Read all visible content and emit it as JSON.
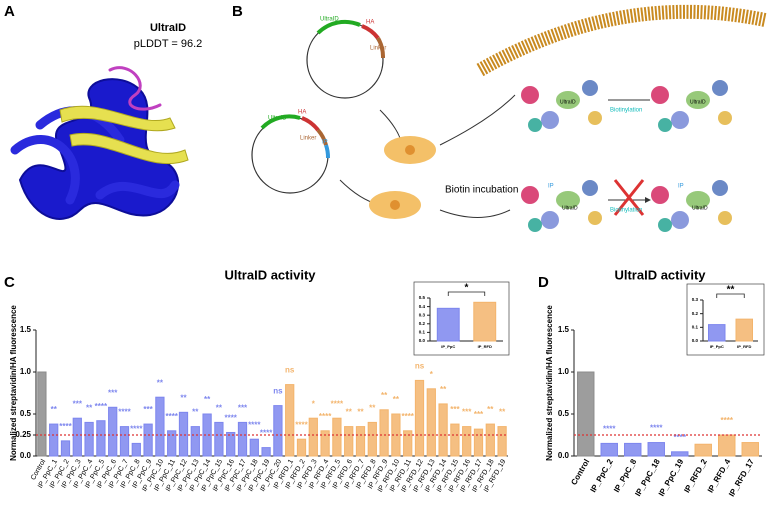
{
  "panel_labels": [
    "A",
    "B",
    "C",
    "D"
  ],
  "structure": {
    "name": "UltraID",
    "score": "pLDDT = 96.2"
  },
  "schematic": {
    "plasmid1": [
      "UltraID",
      "HA",
      "Linker"
    ],
    "plasmid2": [
      "UltraID",
      "HA",
      "IP",
      "Linker"
    ],
    "step": "Biotin incubation",
    "reaction": "Biotinylation",
    "protein": "UltraID",
    "binder": "IP"
  },
  "chart_data": [
    {
      "type": "bar",
      "title": "UltraID activity",
      "y_label": "Normalized streptavidin/HA fluorescence",
      "categories": [
        "Control",
        "IP_PpC_1",
        "IP_PpC_2",
        "IP_PpC_3",
        "IP_PpC_4",
        "IP_PpC_5",
        "IP_PpC_6",
        "IP_PpC_7",
        "IP_PpC_8",
        "IP_PpC_9",
        "IP_PpC_10",
        "IP_PpC_11",
        "IP_PpC_12",
        "IP_PpC_13",
        "IP_PpC_14",
        "IP_PpC_15",
        "IP_PpC_16",
        "IP_PpC_17",
        "IP_PpC_18",
        "IP_PpC_19",
        "IP_PpC_20",
        "IP_RFD_1",
        "IP_RFD_2",
        "IP_RFD_3",
        "IP_RFD_4",
        "IP_RFD_5",
        "IP_RFD_6",
        "IP_RFD_7",
        "IP_RFD_8",
        "IP_RFD_9",
        "IP_RFD_10",
        "IP_RFD_11",
        "IP_RFD_12",
        "IP_RFD_13",
        "IP_RFD_14",
        "IP_RFD_15",
        "IP_RFD_16",
        "IP_RFD_17",
        "IP_RFD_18",
        "IP_RFD_19"
      ],
      "values": [
        1.0,
        0.38,
        0.18,
        0.45,
        0.4,
        0.42,
        0.58,
        0.35,
        0.15,
        0.38,
        0.7,
        0.3,
        0.52,
        0.35,
        0.5,
        0.4,
        0.28,
        0.4,
        0.2,
        0.1,
        0.6,
        0.85,
        0.2,
        0.45,
        0.3,
        0.45,
        0.35,
        0.35,
        0.4,
        0.55,
        0.5,
        0.3,
        0.9,
        0.8,
        0.62,
        0.38,
        0.35,
        0.32,
        0.38,
        0.35
      ],
      "significance": [
        null,
        "**",
        "****",
        "***",
        "**",
        "****",
        "***",
        "****",
        "****",
        "***",
        "**",
        "****",
        "**",
        "**",
        "**",
        "**",
        "****",
        "***",
        "****",
        "****",
        "ns",
        "ns",
        "****",
        "*",
        "****",
        "****",
        "**",
        "**",
        "**",
        "**",
        "**",
        "****",
        "ns",
        "*",
        "**",
        "***",
        "***",
        "***",
        "**",
        "**"
      ],
      "colors": [
        "#8c8c8c",
        "#7d86ee",
        "#7d86ee",
        "#7d86ee",
        "#7d86ee",
        "#7d86ee",
        "#7d86ee",
        "#7d86ee",
        "#7d86ee",
        "#7d86ee",
        "#7d86ee",
        "#7d86ee",
        "#7d86ee",
        "#7d86ee",
        "#7d86ee",
        "#7d86ee",
        "#7d86ee",
        "#7d86ee",
        "#7d86ee",
        "#7d86ee",
        "#7d86ee",
        "#f3b46c",
        "#f3b46c",
        "#f3b46c",
        "#f3b46c",
        "#f3b46c",
        "#f3b46c",
        "#f3b46c",
        "#f3b46c",
        "#f3b46c",
        "#f3b46c",
        "#f3b46c",
        "#f3b46c",
        "#f3b46c",
        "#f3b46c",
        "#f3b46c",
        "#f3b46c",
        "#f3b46c",
        "#f3b46c",
        "#f3b46c"
      ],
      "reference_line": 0.25,
      "reference_color": "#d33",
      "ylim": [
        0,
        1.5
      ],
      "yticks": [
        {
          "value": 0,
          "label": "0.0"
        },
        0.25,
        0.5,
        {
          "value": 1,
          "label": "1.0"
        },
        1.5
      ]
    },
    {
      "type": "bar",
      "categories": [
        "IP_PpC",
        "IP_RFD"
      ],
      "values": [
        0.38,
        0.45
      ],
      "colors": [
        "#7d86ee",
        "#f3b46c"
      ],
      "comparison_label": "*",
      "ylim": [
        0,
        0.5
      ],
      "yticks": [
        {
          "value": 0,
          "label": "0.0"
        },
        0.1,
        0.2,
        0.3,
        0.4,
        0.5
      ]
    },
    {
      "type": "bar",
      "title": "UltraID activity",
      "y_label": "Normalized streptavidin/HA fluorescence",
      "categories": [
        "Control",
        "IP_PpC_2",
        "IP_PpC_8",
        "IP_PpC_18",
        "IP_PpC_19",
        "IP_RFD_2",
        "IP_RFD_4",
        "IP_RFD_17"
      ],
      "values": [
        1.0,
        0.15,
        0.15,
        0.16,
        0.05,
        0.14,
        0.25,
        0.16
      ],
      "significance": [
        null,
        "****",
        null,
        "****",
        "****",
        null,
        "****",
        null
      ],
      "colors": [
        "#8c8c8c",
        "#7d86ee",
        "#7d86ee",
        "#7d86ee",
        "#7d86ee",
        "#f3b46c",
        "#f3b46c",
        "#f3b46c"
      ],
      "reference_line": 0.25,
      "reference_color": "#d33",
      "ylim": [
        0,
        1.5
      ],
      "yticks": [
        {
          "value": 0,
          "label": "0.0"
        },
        0.5,
        {
          "value": 1,
          "label": "1.0"
        },
        1.5
      ]
    },
    {
      "type": "bar",
      "categories": [
        "IP_PpC",
        "IP_RFD"
      ],
      "values": [
        0.12,
        0.16
      ],
      "colors": [
        "#7d86ee",
        "#f3b46c"
      ],
      "comparison_label": "**",
      "ylim": [
        0,
        0.3
      ],
      "yticks": [
        {
          "value": 0,
          "label": "0.0"
        },
        0.1,
        0.2,
        0.3
      ]
    }
  ]
}
